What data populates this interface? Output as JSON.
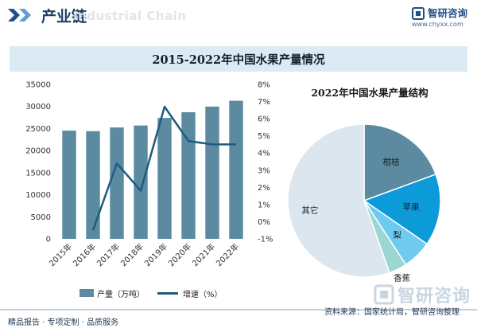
{
  "header": {
    "title": "产业链",
    "watermark_en": "Industrial Chain",
    "brand_name": "智研咨询",
    "brand_url": "www.chyxx.com"
  },
  "main_title": "2015-2022年中国水果产量情况",
  "pie_title": "2022年中国水果产量结构",
  "legend": {
    "bar_label": "产量（万吨）",
    "line_label": "增速（%）"
  },
  "footer": {
    "left": "精品报告 · 专项定制 · 品质服务",
    "right": "资料来源：国家统计局，智研咨询整理",
    "watermark": "智研咨询"
  },
  "colors": {
    "bar": "#5b8aa1",
    "line": "#1f5c7f",
    "pie_citrus": "#5c8aa0",
    "pie_apple": "#0c9ad8",
    "pie_pear": "#6fcaf0",
    "pie_banana": "#9cd6d2",
    "pie_other": "#dbe6ee",
    "title_bar": "#dceaf3",
    "brand": "#1e4f86"
  },
  "chart_data": [
    {
      "type": "bar",
      "categories": [
        "2015年",
        "2016年",
        "2017年",
        "2018年",
        "2019年",
        "2020年",
        "2021年",
        "2022年"
      ],
      "series": [
        {
          "name": "产量（万吨）",
          "type": "bar",
          "axis": "left",
          "values": [
            24525,
            24405,
            25242,
            25688,
            27401,
            28692,
            29970,
            31296
          ]
        },
        {
          "name": "增速（%）",
          "type": "line",
          "axis": "right",
          "values": [
            null,
            -0.5,
            3.4,
            1.8,
            6.7,
            4.7,
            4.5,
            4.5
          ]
        }
      ],
      "y_left": {
        "ylim": [
          0,
          35000
        ],
        "ticks": [
          0,
          5000,
          10000,
          15000,
          20000,
          25000,
          30000,
          35000
        ]
      },
      "y_right": {
        "ylim": [
          -1,
          8
        ],
        "ticks": [
          "-1%",
          "0%",
          "1%",
          "2%",
          "3%",
          "4%",
          "5%",
          "6%",
          "7%",
          "8%"
        ]
      },
      "grid": false,
      "legend_position": "bottom"
    },
    {
      "type": "pie",
      "title": "2022年中国水果产量结构",
      "labels": [
        "柑桔",
        "苹果",
        "梨",
        "香蕉",
        "其它"
      ],
      "values": [
        19.4,
        15.2,
        6.2,
        3.8,
        55.4
      ]
    }
  ]
}
